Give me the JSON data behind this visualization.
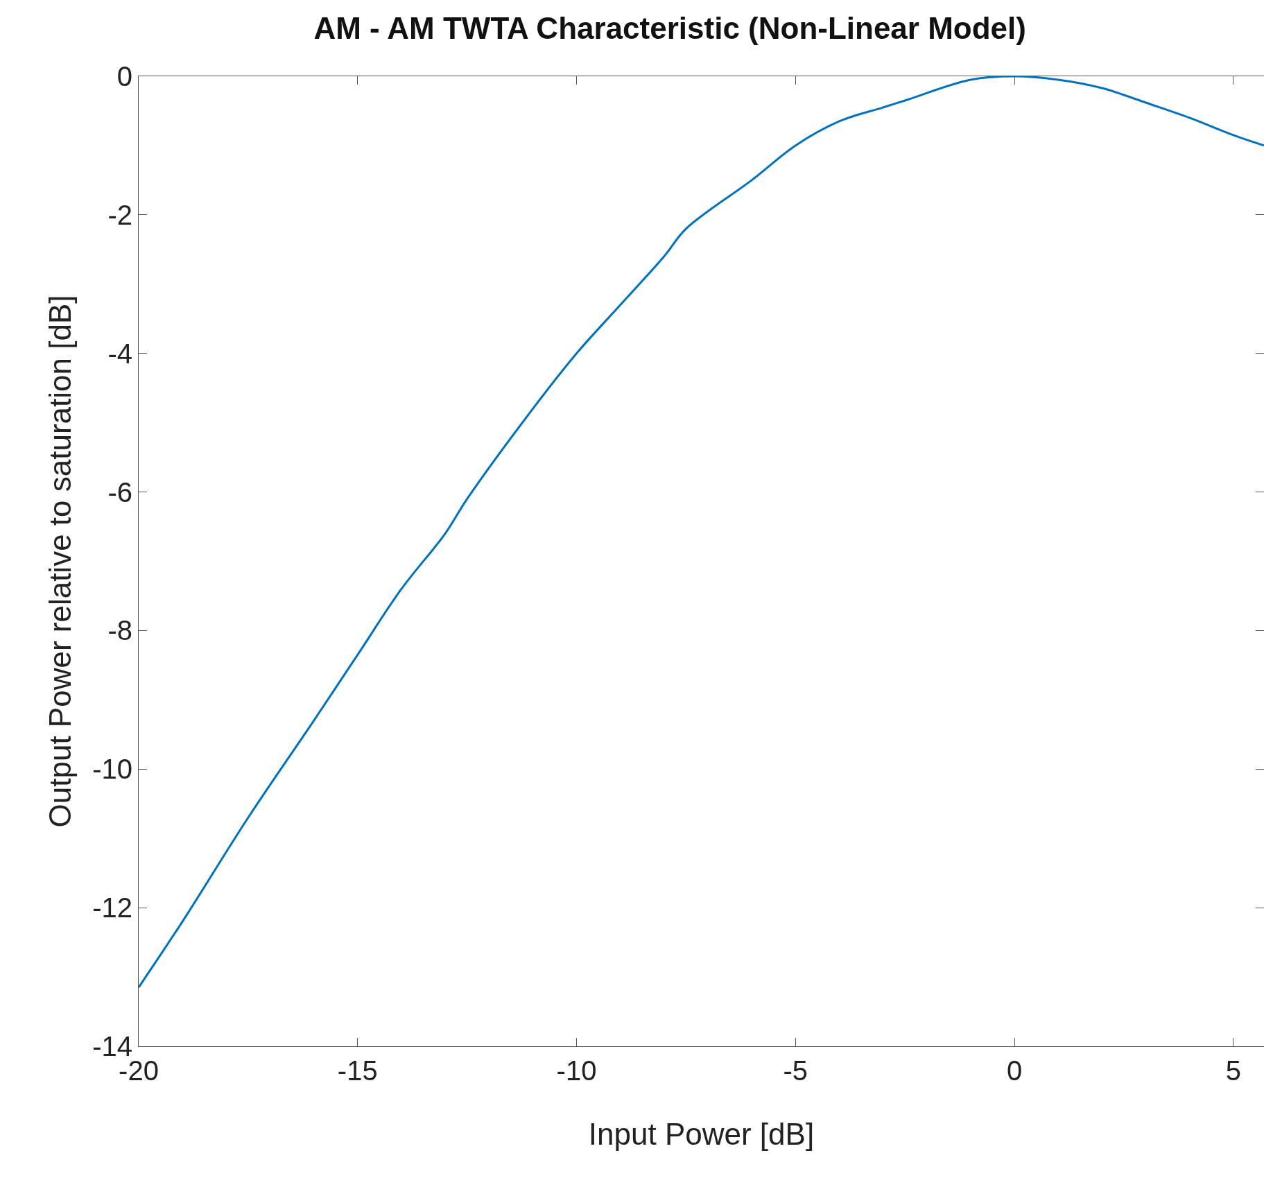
{
  "chart_data": {
    "type": "line",
    "title": "AM - AM TWTA Characteristic (Non-Linear Model)",
    "xlabel": "Input Power [dB]",
    "ylabel": "Output Power relative to saturation [dB]",
    "x": [
      -20,
      -19,
      -17.5,
      -16,
      -15,
      -14,
      -13,
      -12.5,
      -11,
      -10,
      -9,
      -8,
      -7.5,
      -6,
      -5,
      -4,
      -3,
      -2.5,
      -1,
      0,
      1,
      2,
      2.5,
      3,
      4,
      5,
      5.7
    ],
    "series": [
      {
        "color": "#0072bd",
        "values": [
          -13.15,
          -12.2,
          -10.7,
          -9.3,
          -8.35,
          -7.4,
          -6.6,
          -6.1,
          -4.8,
          -4.0,
          -3.3,
          -2.6,
          -2.2,
          -1.5,
          -1.0,
          -0.65,
          -0.45,
          -0.35,
          -0.05,
          0,
          -0.05,
          -0.17,
          -0.27,
          -0.38,
          -0.6,
          -0.85,
          -1.0
        ]
      }
    ],
    "xlim": [
      -20,
      5.7
    ],
    "xticks": [
      -20,
      -15,
      -10,
      -5,
      0,
      5
    ],
    "ylim": [
      -14,
      0
    ],
    "yticks": [
      -14,
      -12,
      -10,
      -8,
      -6,
      -4,
      -2,
      0
    ],
    "grid": false,
    "marker": "none",
    "line_style": "solid"
  }
}
